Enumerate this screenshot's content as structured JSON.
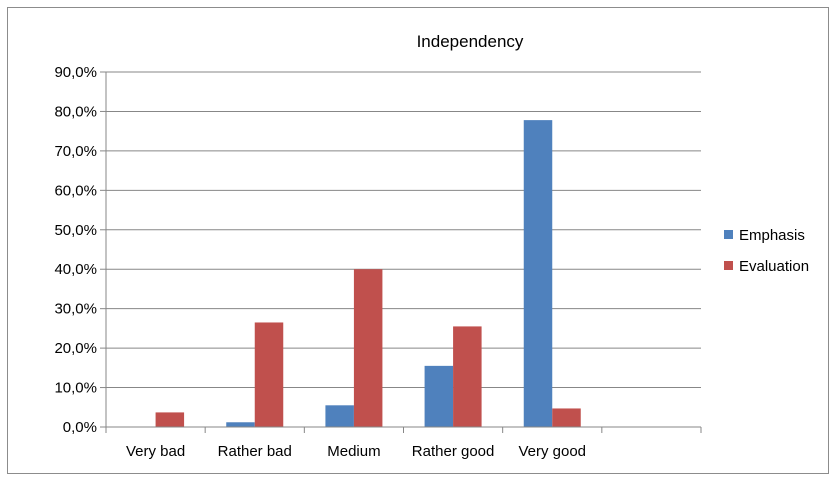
{
  "chart_data": {
    "type": "bar",
    "title": "Independency",
    "xlabel": "",
    "ylabel": "",
    "categories": [
      "Very bad",
      "Rather bad",
      "Medium",
      "Rather good",
      "Very good",
      ""
    ],
    "series": [
      {
        "name": "Emphasis",
        "color": "#4f81bd",
        "values": [
          0.0,
          1.2,
          5.5,
          15.5,
          77.8,
          0.0
        ]
      },
      {
        "name": "Evaluation",
        "color": "#c0504d",
        "values": [
          3.7,
          26.5,
          40.0,
          25.5,
          4.7,
          0.0
        ]
      }
    ],
    "ylim": [
      0,
      90
    ],
    "yticks": [
      "0,0%",
      "10,0%",
      "20,0%",
      "30,0%",
      "40,0%",
      "50,0%",
      "60,0%",
      "70,0%",
      "80,0%",
      "90,0%"
    ],
    "grid": true,
    "legend_position": "right"
  }
}
